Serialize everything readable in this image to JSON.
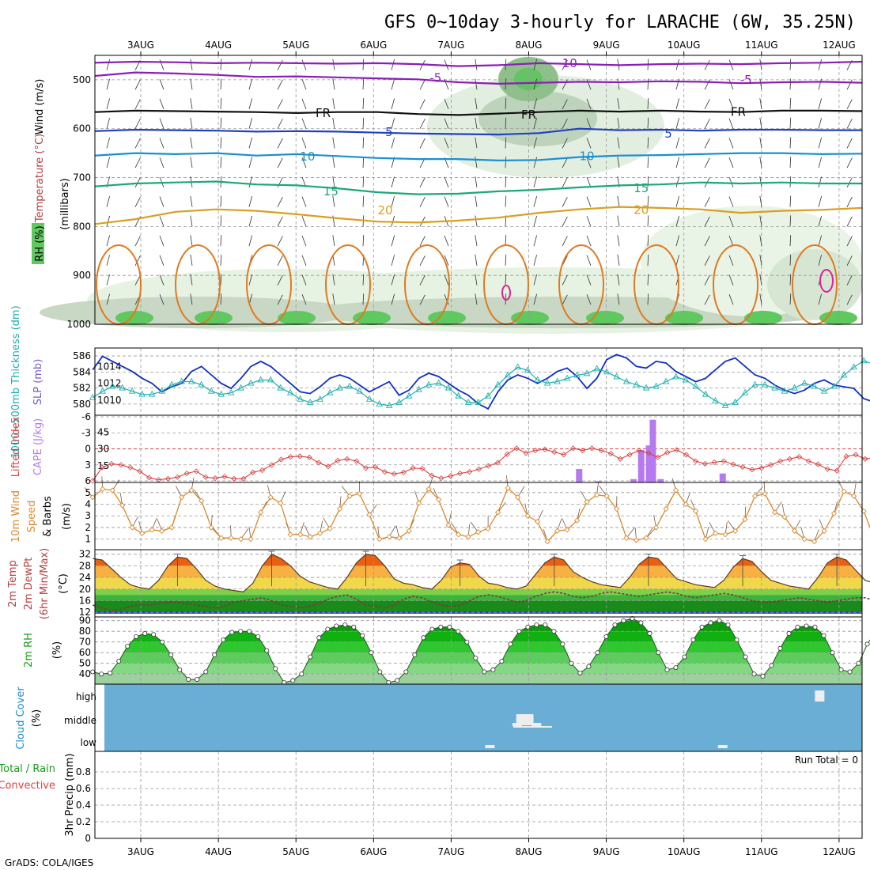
{
  "title": "GFS 0~10day 3-hourly for LARACHE (6W, 35.25N)",
  "footer": "GrADS: COLA/IGES",
  "run_total": "Run Total = 0",
  "date_labels": [
    "3AUG",
    "4AUG",
    "5AUG",
    "6AUG",
    "7AUG",
    "8AUG",
    "9AUG",
    "10AUG",
    "11AUG",
    "12AUG"
  ],
  "chart_data": [
    {
      "type": "contour",
      "panel": "upper-air",
      "labels": {
        "wind": "Wind (m/s)",
        "temp": "Temperature (°C)",
        "rh": "RH (%)",
        "pressure": "(millibars)"
      },
      "y_ticks": [
        500,
        600,
        700,
        800,
        900,
        1000
      ],
      "temperature_contours": [
        {
          "label": "-10",
          "color": "#8a1fb5",
          "y": [
            465,
            463,
            464,
            466,
            465,
            466,
            467,
            466,
            468,
            472,
            470,
            466,
            468,
            470,
            468,
            467,
            468,
            466,
            465,
            463
          ]
        },
        {
          "label": "-5",
          "color": "#8a1fb5",
          "y": [
            492,
            485,
            487,
            490,
            494,
            493,
            495,
            497,
            499,
            505,
            508,
            506,
            504,
            505,
            503,
            504,
            507,
            505,
            504,
            506
          ]
        },
        {
          "label": "FR",
          "color": "#111111",
          "y": [
            566,
            563,
            564,
            565,
            566,
            568,
            566,
            566,
            570,
            572,
            569,
            566,
            563,
            565,
            563,
            565,
            566,
            563,
            563,
            564
          ]
        },
        {
          "label": "5",
          "color": "#2040c0",
          "y": [
            605,
            602,
            603,
            604,
            606,
            605,
            606,
            608,
            610,
            611,
            612,
            609,
            600,
            603,
            602,
            604,
            602,
            602,
            603,
            603
          ]
        },
        {
          "label": "10",
          "color": "#1a8fd0",
          "y": [
            655,
            650,
            652,
            650,
            655,
            652,
            656,
            660,
            662,
            662,
            665,
            664,
            658,
            655,
            654,
            652,
            650,
            650,
            652,
            651
          ]
        },
        {
          "label": "15",
          "color": "#1aa878",
          "y": [
            718,
            712,
            710,
            708,
            714,
            716,
            722,
            730,
            734,
            733,
            728,
            725,
            720,
            716,
            714,
            710,
            712,
            710,
            712,
            712
          ]
        },
        {
          "label": "20",
          "color": "#d8a020",
          "y": [
            795,
            785,
            770,
            765,
            768,
            775,
            783,
            790,
            792,
            788,
            782,
            772,
            765,
            760,
            762,
            765,
            772,
            768,
            766,
            762
          ]
        }
      ],
      "contour_labels": [
        {
          "text": "-10",
          "t": 5.5,
          "p": 466
        },
        {
          "text": "-5",
          "t": 3.8,
          "p": 496
        },
        {
          "text": "-5",
          "t": 7.8,
          "p": 500
        },
        {
          "text": "FR",
          "t": 2.35,
          "p": 568
        },
        {
          "text": "FR",
          "t": 5.0,
          "p": 571
        },
        {
          "text": "FR",
          "t": 7.7,
          "p": 566
        },
        {
          "text": "5",
          "t": 3.2,
          "p": 607
        },
        {
          "text": "5",
          "t": 6.8,
          "p": 610
        },
        {
          "text": "10",
          "t": 2.15,
          "p": 657
        },
        {
          "text": "10",
          "t": 5.75,
          "p": 656
        },
        {
          "text": "15",
          "t": 2.45,
          "p": 728
        },
        {
          "text": "15",
          "t": 6.45,
          "p": 722
        },
        {
          "text": "20",
          "t": 3.15,
          "p": 767
        },
        {
          "text": "20",
          "t": 6.45,
          "p": 766
        }
      ]
    },
    {
      "type": "line",
      "panel": "thickness-slp",
      "ylabel_left": "1000~500mb Thickness (dm)",
      "ylabel_right": "SLP (mb)",
      "left_ticks": [
        580,
        582,
        584,
        586
      ],
      "right_ticks": [
        1010,
        1012,
        1014
      ],
      "series": [
        {
          "name": "SLP (mb)",
          "color": "#1030c0",
          "axis": "right",
          "values": [
            1013.6,
            1015.2,
            1014.6,
            1014.0,
            1013.4,
            1012.6,
            1012.0,
            1011.0,
            1011.6,
            1012.0,
            1013.4,
            1014.0,
            1013.0,
            1012.0,
            1011.4,
            1012.6,
            1014.0,
            1014.6,
            1014.0,
            1013.0,
            1012.0,
            1011.0,
            1010.8,
            1011.6,
            1012.6,
            1013.0,
            1012.6,
            1011.8,
            1011.0,
            1011.6,
            1012.2,
            1010.6,
            1011.2,
            1012.6,
            1013.2,
            1012.8,
            1012.0,
            1011.2,
            1010.6,
            1009.6,
            1009.0,
            1011.0,
            1012.4,
            1013.0,
            1012.6,
            1012.0,
            1012.6,
            1013.4,
            1013.8,
            1012.8,
            1011.4,
            1012.6,
            1014.8,
            1015.4,
            1015.0,
            1014.0,
            1013.8,
            1014.6,
            1014.4,
            1013.4,
            1012.8,
            1012.2,
            1012.6,
            1013.6,
            1014.6,
            1015.0,
            1014.0,
            1013.0,
            1012.6,
            1011.8,
            1011.2,
            1010.8,
            1011.2,
            1012.0,
            1012.4,
            1011.8,
            1011.6,
            1011.4,
            1010.2,
            1009.8,
            1010.6,
            1011.2
          ]
        },
        {
          "name": "Thickness (dm)",
          "color": "#20b0b0",
          "axis": "left",
          "values": [
            580.8,
            581.6,
            582.2,
            582.0,
            581.6,
            581.2,
            581.2,
            581.6,
            582.4,
            582.8,
            582.8,
            582.4,
            581.6,
            581.2,
            581.4,
            582.0,
            582.6,
            583.0,
            583.0,
            582.0,
            581.4,
            580.6,
            580.2,
            580.6,
            581.4,
            582.0,
            582.2,
            581.6,
            580.6,
            580.0,
            579.8,
            580.2,
            581.0,
            581.8,
            582.4,
            582.6,
            582.0,
            581.0,
            580.2,
            580.2,
            581.0,
            582.4,
            583.6,
            584.6,
            584.2,
            583.0,
            582.6,
            582.8,
            583.2,
            583.6,
            583.8,
            584.4,
            584.0,
            583.4,
            582.8,
            582.4,
            582.0,
            582.2,
            582.8,
            583.4,
            583.0,
            582.2,
            581.2,
            580.4,
            579.8,
            580.2,
            581.4,
            582.4,
            582.4,
            582.0,
            581.6,
            582.0,
            582.6,
            582.2,
            581.6,
            582.2,
            583.6,
            584.6,
            585.4,
            585.0,
            584.2,
            583.8
          ]
        }
      ]
    },
    {
      "type": "bar",
      "panel": "lifted-cape",
      "ylabel_left": "Lifted Index",
      "ylabel_right": "CAPE (J/kg)",
      "left_ticks": [
        "6",
        "3",
        "0",
        "-3",
        "-6"
      ],
      "right_ticks": [
        15,
        30,
        45
      ],
      "cape_bars": [
        {
          "t": 5.65,
          "value": 12
        },
        {
          "t": 5.9,
          "value": 1
        },
        {
          "t": 6.35,
          "value": 3
        },
        {
          "t": 6.45,
          "value": 29
        },
        {
          "t": 6.55,
          "value": 33
        },
        {
          "t": 6.6,
          "value": 56
        },
        {
          "t": 6.7,
          "value": 3
        },
        {
          "t": 7.5,
          "value": 8
        }
      ],
      "lifted_index": [
        6.0,
        3.5,
        2.8,
        3.0,
        3.5,
        4.2,
        5.4,
        5.8,
        5.6,
        5.3,
        4.6,
        4.2,
        5.3,
        5.5,
        5.2,
        5.6,
        5.6,
        4.4,
        4.0,
        3.0,
        2.0,
        1.5,
        1.4,
        1.6,
        2.6,
        3.3,
        2.2,
        1.9,
        2.3,
        3.6,
        3.4,
        4.3,
        4.7,
        4.4,
        3.6,
        3.7,
        5.0,
        5.5,
        5.1,
        4.6,
        4.3,
        3.8,
        3.2,
        2.6,
        1.0,
        -0.1,
        0.8,
        0.3,
        0.1,
        0.6,
        1.1,
        -0.1,
        0.3,
        -0.1,
        0.3,
        0.9,
        1.9,
        1.1,
        0.3,
        0.8,
        1.6,
        0.7,
        0.2,
        1.1,
        2.3,
        2.8,
        2.5,
        2.3,
        2.9,
        3.4,
        3.9,
        3.6,
        3.0,
        2.3,
        1.9,
        1.5,
        2.3,
        2.9,
        3.8,
        4.1,
        1.4,
        1.1,
        1.9,
        1.6,
        2.6,
        3.3
      ]
    },
    {
      "type": "line",
      "panel": "10m-wind",
      "ylabel": "10m Wind Speed (m/s) & Barbs",
      "y_ticks": [
        1,
        2,
        3,
        4,
        5
      ],
      "series": [
        {
          "name": "10m Wind Speed",
          "color": "#d88a30",
          "values": [
            4.6,
            5.3,
            5.2,
            3.9,
            2.0,
            1.5,
            1.8,
            1.7,
            2.0,
            4.6,
            5.2,
            4.3,
            2.0,
            1.1,
            1.1,
            1.0,
            1.0,
            3.3,
            4.6,
            4.1,
            1.4,
            1.4,
            1.2,
            1.5,
            1.9,
            3.6,
            4.7,
            4.9,
            3.1,
            1.0,
            1.2,
            1.1,
            1.7,
            4.1,
            5.3,
            4.4,
            2.2,
            1.4,
            1.2,
            1.6,
            1.9,
            3.3,
            5.4,
            4.6,
            3.0,
            2.5,
            0.8,
            1.7,
            1.8,
            2.6,
            4.2,
            4.8,
            4.7,
            3.6,
            1.1,
            0.9,
            1.1,
            2.0,
            3.6,
            5.2,
            4.0,
            3.4,
            1.0,
            1.5,
            1.4,
            1.7,
            2.7,
            4.7,
            4.9,
            3.3,
            2.9,
            1.7,
            1.0,
            0.8,
            1.7,
            3.2,
            5.1,
            4.7,
            3.4,
            1.2,
            0.6,
            0.8
          ]
        }
      ]
    },
    {
      "type": "area",
      "panel": "2m-temp",
      "ylabel": "2m Temp 2m DewPt (6hr Min/Max) (°C)",
      "y_ticks": [
        12,
        16,
        20,
        24,
        28,
        32
      ],
      "series": [
        {
          "name": "2m Temp",
          "color": "#5a3a20",
          "values": [
            30.5,
            30.0,
            27.0,
            24.0,
            21.5,
            20.5,
            20.0,
            23.0,
            28.0,
            31.0,
            30.5,
            27.0,
            23.0,
            21.0,
            20.0,
            19.5,
            19.0,
            22.0,
            28.0,
            32.0,
            30.5,
            28.0,
            24.5,
            22.5,
            21.5,
            20.5,
            20.0,
            24.0,
            29.0,
            32.0,
            31.5,
            28.0,
            23.5,
            22.0,
            21.5,
            20.5,
            20.0,
            23.0,
            27.5,
            29.0,
            28.5,
            24.5,
            22.0,
            21.5,
            20.5,
            20.0,
            21.0,
            25.0,
            29.0,
            31.0,
            30.0,
            26.0,
            24.0,
            22.5,
            21.5,
            21.0,
            20.5,
            24.0,
            28.5,
            31.0,
            30.5,
            27.0,
            23.5,
            22.5,
            21.5,
            21.0,
            20.5,
            23.0,
            27.5,
            30.5,
            29.5,
            26.0,
            23.0,
            22.0,
            21.0,
            20.5,
            20.0,
            24.0,
            29.0,
            31.0,
            30.0,
            26.5,
            23.0,
            22.0,
            21.5,
            21.5
          ]
        },
        {
          "name": "2m DewPt",
          "color": "#7a3a40",
          "values": [
            14.5,
            13.5,
            12.5,
            13.0,
            14.0,
            14.5,
            14.5,
            15.0,
            15.5,
            15.5,
            15.0,
            14.5,
            14.0,
            13.5,
            14.0,
            15.5,
            16.0,
            16.5,
            17.0,
            16.0,
            14.5,
            14.0,
            13.5,
            14.0,
            15.0,
            16.5,
            17.5,
            18.0,
            16.5,
            14.5,
            14.0,
            13.5,
            14.5,
            16.5,
            17.5,
            17.0,
            15.5,
            14.5,
            14.0,
            14.5,
            16.0,
            17.5,
            18.0,
            17.5,
            16.5,
            15.5,
            16.0,
            17.5,
            18.5,
            19.0,
            18.5,
            17.5,
            17.0,
            17.5,
            18.5,
            19.0,
            18.5,
            18.0,
            17.5,
            18.0,
            18.5,
            19.0,
            18.5,
            17.5,
            17.0,
            17.5,
            18.0,
            18.5,
            18.0,
            17.0,
            16.0,
            15.5,
            15.5,
            16.0,
            16.5,
            17.0,
            16.5,
            16.0,
            15.5,
            16.0,
            16.5,
            17.0,
            17.0,
            16.0,
            15.5,
            15.5
          ]
        }
      ]
    },
    {
      "type": "area",
      "panel": "2m-rh",
      "ylabel": "2m RH (%)",
      "y_ticks": [
        40,
        50,
        60,
        70,
        80,
        90
      ],
      "series": [
        {
          "name": "2m RH",
          "color": "#1a7a1a",
          "values": [
            42,
            40,
            41,
            52,
            66,
            75,
            78,
            77,
            70,
            58,
            44,
            35,
            35,
            42,
            58,
            72,
            79,
            80,
            80,
            75,
            62,
            45,
            32,
            34,
            40,
            56,
            74,
            82,
            85,
            86,
            84,
            76,
            60,
            42,
            32,
            34,
            42,
            58,
            74,
            82,
            84,
            84,
            80,
            70,
            55,
            42,
            44,
            52,
            68,
            80,
            84,
            86,
            86,
            80,
            68,
            50,
            41,
            47,
            60,
            75,
            86,
            90,
            92,
            88,
            78,
            60,
            44,
            46,
            56,
            72,
            84,
            88,
            90,
            86,
            72,
            56,
            40,
            38,
            48,
            64,
            78,
            84,
            85,
            84,
            76,
            60,
            44,
            42,
            50,
            68,
            80,
            84,
            84
          ]
        }
      ]
    },
    {
      "type": "heatmap",
      "panel": "cloud-cover",
      "ylabel": "Cloud Cover (%)",
      "row_labels": [
        "high",
        "middle",
        "low"
      ],
      "blocks": [
        {
          "t": 4.9,
          "row": "middle",
          "intensity": 0.9
        },
        {
          "t": 5.0,
          "row": "middle",
          "intensity": 0.9
        },
        {
          "t": 4.85,
          "row": "middle",
          "intensity": 0.6
        },
        {
          "t": 5.1,
          "row": "middle",
          "intensity": 0.6
        },
        {
          "t": 4.5,
          "row": "low",
          "intensity": 0.7
        },
        {
          "t": 7.5,
          "row": "low",
          "intensity": 0.6
        },
        {
          "t": 8.75,
          "row": "high",
          "intensity": 0.9
        }
      ]
    },
    {
      "type": "bar",
      "panel": "precip",
      "ylabel": "3hr Precip (mm)",
      "legend": [
        "Total / Rain",
        "Convective"
      ],
      "y_ticks": [
        "0",
        "0.2",
        "0.4",
        "0.6",
        "0.8"
      ],
      "ylim": [
        0,
        1
      ],
      "values": []
    }
  ]
}
